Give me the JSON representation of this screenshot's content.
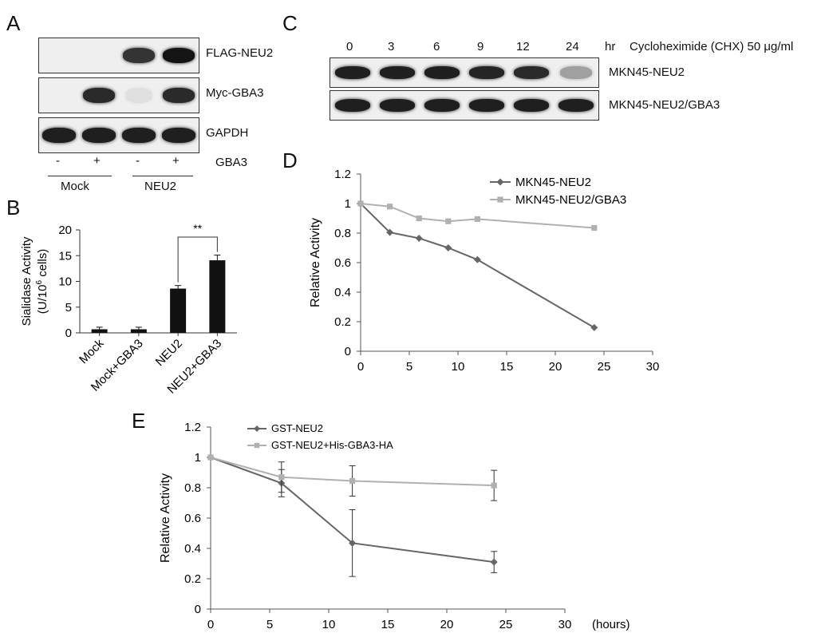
{
  "panel_a": {
    "letter": "A",
    "blots": [
      {
        "label": "FLAG-NEU2",
        "bands": [
          0,
          0,
          0.85,
          1.0
        ]
      },
      {
        "label": "Myc-GBA3",
        "bands": [
          0,
          0.9,
          0.05,
          0.9
        ]
      },
      {
        "label": "GAPDH",
        "bands": [
          0.95,
          0.95,
          0.95,
          0.95
        ]
      }
    ],
    "gba3_signs": [
      "-",
      "+",
      "-",
      "+"
    ],
    "gba3_label": "GBA3",
    "groups": [
      "Mock",
      "NEU2"
    ]
  },
  "panel_c": {
    "letter": "C",
    "timepoints": [
      "0",
      "3",
      "6",
      "9",
      "12",
      "24"
    ],
    "unit": "hr",
    "treatment": "Cycloheximide (CHX) 50 μg/ml",
    "blots": [
      {
        "label": "MKN45-NEU2",
        "bands": [
          0.95,
          0.95,
          0.95,
          0.92,
          0.9,
          0.35
        ]
      },
      {
        "label": "MKN45-NEU2/GBA3",
        "bands": [
          0.95,
          0.95,
          0.95,
          0.95,
          0.95,
          0.95
        ]
      }
    ]
  },
  "chart_data": [
    {
      "id": "B",
      "letter": "B",
      "type": "bar",
      "ylabel_line1": "Sialidase Activity",
      "ylabel_line2": "(U/10",
      "ylabel_sup": "6",
      "ylabel_line2_end": " cells)",
      "categories": [
        "Mock",
        "Mock+GBA3",
        "NEU2",
        "NEU2+GBA3"
      ],
      "values": [
        0.7,
        0.7,
        8.6,
        14.1
      ],
      "errors": [
        0.4,
        0.4,
        0.6,
        1.0
      ],
      "ylim": [
        0,
        20
      ],
      "yticks": [
        "0",
        "5",
        "10",
        "15",
        "20"
      ],
      "significance": "**",
      "bar_color": "#111111"
    },
    {
      "id": "D",
      "letter": "D",
      "type": "line",
      "ylabel": "Relative Activity",
      "xlim": [
        0,
        30
      ],
      "ylim": [
        0,
        1.2
      ],
      "xticks": [
        "0",
        "5",
        "10",
        "15",
        "20",
        "25",
        "30"
      ],
      "yticks": [
        "0",
        "0.2",
        "0.4",
        "0.6",
        "0.8",
        "1",
        "1.2"
      ],
      "series": [
        {
          "name": "MKN45-NEU2",
          "color": "#666666",
          "marker": "diamond",
          "x": [
            0,
            3,
            6,
            9,
            12,
            24
          ],
          "y": [
            1.0,
            0.805,
            0.765,
            0.7,
            0.62,
            0.16
          ]
        },
        {
          "name": "MKN45-NEU2/GBA3",
          "color": "#b0b0b0",
          "marker": "square",
          "x": [
            0,
            3,
            6,
            9,
            12,
            24
          ],
          "y": [
            1.0,
            0.98,
            0.9,
            0.88,
            0.895,
            0.835
          ]
        }
      ]
    },
    {
      "id": "E",
      "letter": "E",
      "type": "line",
      "ylabel": "Relative Activity",
      "xunit": "(hours)",
      "xlim": [
        0,
        30
      ],
      "ylim": [
        0,
        1.2
      ],
      "xticks": [
        "0",
        "5",
        "10",
        "15",
        "20",
        "25",
        "30"
      ],
      "yticks": [
        "0",
        "0.2",
        "0.4",
        "0.6",
        "0.8",
        "1",
        "1.2"
      ],
      "series": [
        {
          "name": "GST-NEU2",
          "color": "#666666",
          "marker": "diamond",
          "x": [
            0,
            6,
            12,
            24
          ],
          "y": [
            1.0,
            0.83,
            0.435,
            0.31
          ],
          "err": [
            0,
            0.09,
            0.22,
            0.07
          ]
        },
        {
          "name": "GST-NEU2+His-GBA3-HA",
          "color": "#b0b0b0",
          "marker": "square",
          "x": [
            0,
            6,
            12,
            24
          ],
          "y": [
            1.0,
            0.87,
            0.845,
            0.815
          ],
          "err": [
            0,
            0.1,
            0.1,
            0.1
          ]
        }
      ]
    }
  ]
}
